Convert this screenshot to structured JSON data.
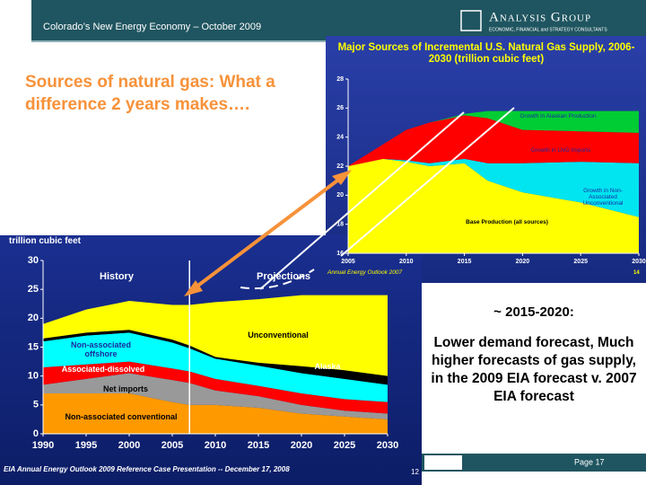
{
  "slide": {
    "header": "Colorado’s New Energy Economy – October 2009",
    "logo": "Analysis Group",
    "logo_tagline": "ECONOMIC, FINANCIAL and STRATEGY CONSULTANTS",
    "title": "Sources of natural gas: What a difference 2 years makes….",
    "note_heading": "~ 2015-2020:",
    "note_body": "Lower demand forecast, Much higher forecasts of gas supply, in the 2009 EIA forecast v. 2007 EIA forecast",
    "page": "Page 17"
  },
  "chart_data": [
    {
      "type": "area",
      "title": "Major Sources of Incremental U.S. Natural Gas Supply, 2006-2030 (trillion cubic feet)",
      "source": "Annual Energy Outlook 2007",
      "page_number": "14",
      "x": [
        2005,
        2008,
        2010,
        2012,
        2015,
        2017,
        2020,
        2025,
        2030
      ],
      "series": [
        {
          "name": "Base Production (all sources)",
          "color": "#ffff00",
          "values": [
            22,
            22.5,
            22.3,
            22,
            22.2,
            21,
            20.2,
            19.5,
            18.5
          ]
        },
        {
          "name": "Growth in Non-Associated Unconventional",
          "color": "#00e5f0",
          "values": [
            0,
            0,
            0.1,
            0.2,
            0.3,
            1.2,
            2,
            2.8,
            3.7
          ]
        },
        {
          "name": "Growth in LNG Imports",
          "color": "#ff0000",
          "values": [
            0,
            1,
            2.1,
            2.8,
            3,
            3.1,
            2.3,
            2.1,
            2.1
          ]
        },
        {
          "name": "Growth in Alaskan Production",
          "color": "#00cc33",
          "values": [
            0,
            0,
            0,
            0,
            0.1,
            0.5,
            1.3,
            1.4,
            1.5
          ]
        }
      ],
      "xlim": [
        2005,
        2030
      ],
      "xticks": [
        2005,
        2010,
        2015,
        2020,
        2025,
        2030
      ],
      "ylim": [
        16,
        28
      ],
      "yticks": [
        16,
        18,
        20,
        22,
        24,
        26,
        28
      ]
    },
    {
      "type": "area",
      "y_label": "trillion cubic feet",
      "annotations": [
        "History",
        "Projections"
      ],
      "source": "EIA Annual Energy Outlook 2009 Reference Case Presentation -- December 17, 2008",
      "page_number": "12",
      "x": [
        1990,
        1995,
        2000,
        2005,
        2007,
        2010,
        2015,
        2020,
        2025,
        2030
      ],
      "series": [
        {
          "name": "Non-associated conventional",
          "color": "#ff9900",
          "values": [
            7,
            7,
            7,
            5.5,
            5,
            5,
            4.5,
            3.5,
            3,
            2.5
          ]
        },
        {
          "name": "Net imports",
          "color": "#999999",
          "values": [
            1.5,
            2.5,
            3.5,
            3.8,
            3.8,
            2.5,
            2,
            1.5,
            1,
            1
          ]
        },
        {
          "name": "Associated-dissolved",
          "color": "#ff0000",
          "values": [
            3,
            2.5,
            2,
            2,
            2,
            2,
            1.8,
            2,
            2,
            2
          ]
        },
        {
          "name": "Non-associated offshore",
          "color": "#00ffff",
          "values": [
            4.5,
            5,
            5,
            4.5,
            4,
            3.5,
            3.5,
            3.5,
            3.5,
            3
          ]
        },
        {
          "name": "Alaska",
          "color": "#000000",
          "values": [
            0.5,
            0.5,
            0.5,
            0.5,
            0.5,
            0.3,
            0.5,
            1.2,
            1.5,
            1.5
          ]
        },
        {
          "name": "Unconventional",
          "color": "#ffff00",
          "values": [
            2.5,
            4,
            5,
            6,
            7,
            9.5,
            11,
            12.3,
            13,
            14
          ]
        }
      ],
      "xlim": [
        1990,
        2030
      ],
      "xticks": [
        1990,
        1995,
        2000,
        2005,
        2010,
        2015,
        2020,
        2025,
        2030
      ],
      "ylim": [
        0,
        30
      ],
      "yticks": [
        0,
        5,
        10,
        15,
        20,
        25,
        30
      ]
    }
  ]
}
